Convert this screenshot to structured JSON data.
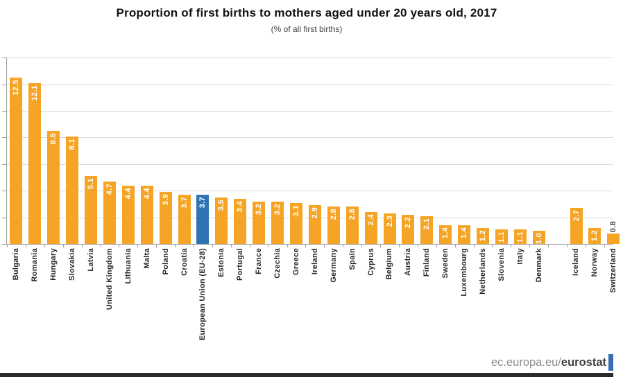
{
  "footer": {
    "url_prefix": "ec.europa.eu/",
    "url_bold": "eurostat"
  },
  "colors": {
    "bar_orange": "#F6A425",
    "bar_blue_highlight": "#2E74B5",
    "gridline": "#d9d9d9",
    "axis": "#a0a0a0",
    "value_label_inside": "#ffffff",
    "value_label_outside": "#404040",
    "footer_logo_blue": "#3a6db5"
  },
  "chart_data": {
    "type": "bar",
    "title": "Proportion of first births to mothers aged under 20 years old, 2017",
    "subtitle": "(% of all first births)",
    "xlabel": "",
    "ylabel": "",
    "ylim": [
      0,
      14
    ],
    "gridline_step": 2,
    "grid": true,
    "legend": false,
    "ytick_labels_visible": false,
    "value_labels": "rotated 90deg, inside end of bar, white bold",
    "bar_color": "#F6A425",
    "highlight_color": "#2E74B5",
    "highlight_category": "European Union (EU-28)",
    "bars": [
      {
        "label": "Bulgaria",
        "value": 12.5,
        "display": "12.5"
      },
      {
        "label": "Romania",
        "value": 12.1,
        "display": "12.1"
      },
      {
        "label": "Hungary",
        "value": 8.5,
        "display": "8.5"
      },
      {
        "label": "Slovakia",
        "value": 8.1,
        "display": "8.1"
      },
      {
        "label": "Latvia",
        "value": 5.1,
        "display": "5.1"
      },
      {
        "label": "United Kingdom",
        "value": 4.7,
        "display": "4.7"
      },
      {
        "label": "Lithuania",
        "value": 4.4,
        "display": "4.4"
      },
      {
        "label": "Malta",
        "value": 4.4,
        "display": "4.4"
      },
      {
        "label": "Poland",
        "value": 3.9,
        "display": "3.9"
      },
      {
        "label": "Croatia",
        "value": 3.7,
        "display": "3.7"
      },
      {
        "label": "European Union (EU-28)",
        "value": 3.7,
        "display": "3.7",
        "highlight": true
      },
      {
        "label": "Estonia",
        "value": 3.5,
        "display": "3.5"
      },
      {
        "label": "Portugal",
        "value": 3.4,
        "display": "3.4"
      },
      {
        "label": "France",
        "value": 3.2,
        "display": "3.2"
      },
      {
        "label": "Czechia",
        "value": 3.2,
        "display": "3.2"
      },
      {
        "label": "Greece",
        "value": 3.1,
        "display": "3.1"
      },
      {
        "label": "Ireland",
        "value": 2.9,
        "display": "2.9"
      },
      {
        "label": "Germany",
        "value": 2.8,
        "display": "2.8"
      },
      {
        "label": "Spain",
        "value": 2.8,
        "display": "2.8"
      },
      {
        "label": "Cyprus",
        "value": 2.4,
        "display": "2.4"
      },
      {
        "label": "Belgium",
        "value": 2.3,
        "display": "2.3"
      },
      {
        "label": "Austria",
        "value": 2.2,
        "display": "2.2"
      },
      {
        "label": "Finland",
        "value": 2.1,
        "display": "2.1"
      },
      {
        "label": "Sweden",
        "value": 1.4,
        "display": "1.4"
      },
      {
        "label": "Luxembourg",
        "value": 1.4,
        "display": "1.4"
      },
      {
        "label": "Netherlands",
        "value": 1.2,
        "display": "1.2"
      },
      {
        "label": "Slovenia",
        "value": 1.1,
        "display": "1.1"
      },
      {
        "label": "Italy",
        "value": 1.1,
        "display": "1.1"
      },
      {
        "label": "Denmark",
        "value": 1.0,
        "display": "1.0"
      },
      {
        "label": "",
        "value": null,
        "spacer": true
      },
      {
        "label": "Iceland",
        "value": 2.7,
        "display": "2.7"
      },
      {
        "label": "Norway",
        "value": 1.2,
        "display": "1.2"
      },
      {
        "label": "Switzerland",
        "value": 0.8,
        "display": "0.8"
      }
    ]
  }
}
